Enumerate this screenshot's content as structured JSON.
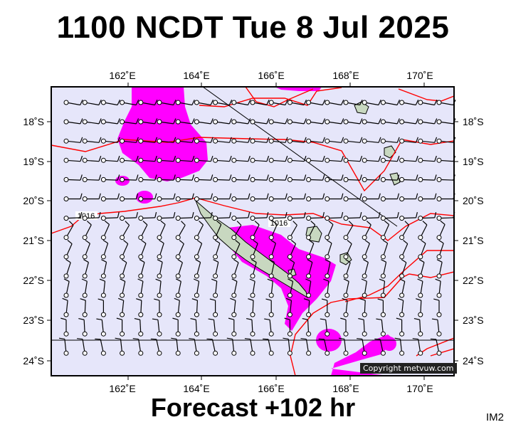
{
  "header": {
    "title": "1100 NCDT Tue 8 Jul 2025"
  },
  "footer": {
    "forecast": "Forecast +102 hr",
    "tag": "IM2"
  },
  "map": {
    "lon_labels": [
      "162˚E",
      "164˚E",
      "166˚E",
      "168˚E",
      "170˚E"
    ],
    "lat_labels": [
      "18˚S",
      "19˚S",
      "20˚S",
      "21˚S",
      "22˚S",
      "23˚S",
      "24˚S"
    ],
    "isobar_labels": [
      "1016",
      "1016"
    ],
    "copyright": "Copyright metvuw.com",
    "colors": {
      "background": "#e6e6fa",
      "rain": "#ff00ff",
      "isobar": "#ff0000",
      "land": "#c8d8c0"
    }
  }
}
